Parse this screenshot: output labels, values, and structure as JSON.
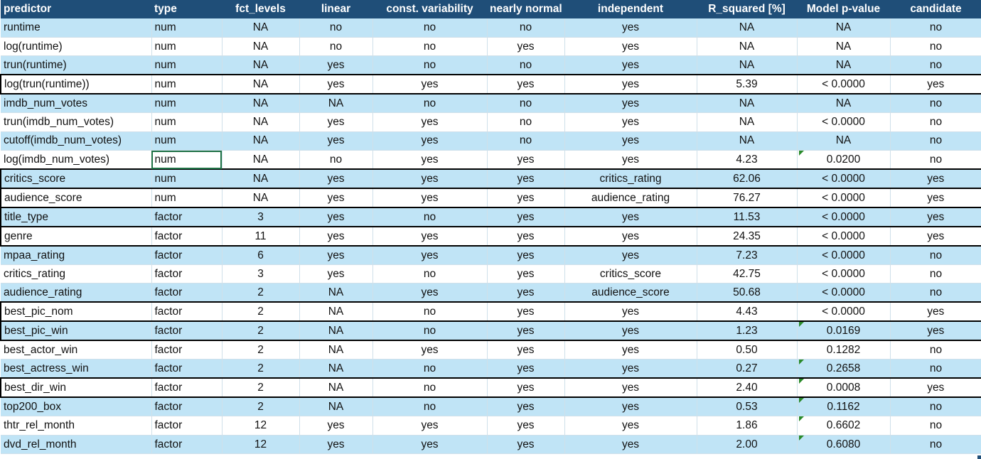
{
  "columns": [
    "predictor",
    "type",
    "fct_levels",
    "linear",
    "const. variability",
    "nearly normal",
    "independent",
    "R_squared [%]",
    "Model p-value",
    "candidate"
  ],
  "rows": [
    {
      "cells": [
        "runtime",
        "num",
        "NA",
        "no",
        "no",
        "no",
        "yes",
        "NA",
        "NA",
        "no"
      ]
    },
    {
      "cells": [
        "log(runtime)",
        "num",
        "NA",
        "no",
        "no",
        "yes",
        "yes",
        "NA",
        "NA",
        "no"
      ]
    },
    {
      "cells": [
        "trun(runtime)",
        "num",
        "NA",
        "yes",
        "no",
        "no",
        "yes",
        "NA",
        "NA",
        "no"
      ]
    },
    {
      "cells": [
        "log(trun(runtime))",
        "num",
        "NA",
        "yes",
        "yes",
        "yes",
        "yes",
        "5.39",
        "< 0.0000",
        "yes"
      ]
    },
    {
      "cells": [
        "imdb_num_votes",
        "num",
        "NA",
        "NA",
        "no",
        "no",
        "yes",
        "NA",
        "NA",
        "no"
      ]
    },
    {
      "cells": [
        "trun(imdb_num_votes)",
        "num",
        "NA",
        "yes",
        "yes",
        "no",
        "yes",
        "NA",
        "< 0.0000",
        "no"
      ]
    },
    {
      "cells": [
        "cutoff(imdb_num_votes)",
        "num",
        "NA",
        "yes",
        "yes",
        "no",
        "yes",
        "NA",
        "NA",
        "no"
      ]
    },
    {
      "cells": [
        "log(imdb_num_votes)",
        "num",
        "NA",
        "no",
        "yes",
        "yes",
        "yes",
        "4.23",
        "0.0200",
        "no"
      ]
    },
    {
      "cells": [
        "critics_score",
        "num",
        "NA",
        "yes",
        "yes",
        "yes",
        "critics_rating",
        "62.06",
        "< 0.0000",
        "yes"
      ]
    },
    {
      "cells": [
        "audience_score",
        "num",
        "NA",
        "yes",
        "yes",
        "yes",
        "audience_rating",
        "76.27",
        "< 0.0000",
        "yes"
      ]
    },
    {
      "cells": [
        "title_type",
        "factor",
        "3",
        "yes",
        "no",
        "yes",
        "yes",
        "11.53",
        "< 0.0000",
        "yes"
      ]
    },
    {
      "cells": [
        "genre",
        "factor",
        "11",
        "yes",
        "yes",
        "yes",
        "yes",
        "24.35",
        "< 0.0000",
        "yes"
      ]
    },
    {
      "cells": [
        "mpaa_rating",
        "factor",
        "6",
        "yes",
        "yes",
        "yes",
        "yes",
        "7.23",
        "< 0.0000",
        "no"
      ]
    },
    {
      "cells": [
        "critics_rating",
        "factor",
        "3",
        "yes",
        "no",
        "yes",
        "critics_score",
        "42.75",
        "< 0.0000",
        "no"
      ]
    },
    {
      "cells": [
        "audience_rating",
        "factor",
        "2",
        "NA",
        "yes",
        "yes",
        "audience_score",
        "50.68",
        "< 0.0000",
        "no"
      ]
    },
    {
      "cells": [
        "best_pic_nom",
        "factor",
        "2",
        "NA",
        "no",
        "yes",
        "yes",
        "4.43",
        "< 0.0000",
        "yes"
      ]
    },
    {
      "cells": [
        "best_pic_win",
        "factor",
        "2",
        "NA",
        "no",
        "yes",
        "yes",
        "1.23",
        "0.0169",
        "yes"
      ]
    },
    {
      "cells": [
        "best_actor_win",
        "factor",
        "2",
        "NA",
        "yes",
        "yes",
        "yes",
        "0.50",
        "0.1282",
        "no"
      ]
    },
    {
      "cells": [
        "best_actress_win",
        "factor",
        "2",
        "NA",
        "no",
        "yes",
        "yes",
        "0.27",
        "0.2658",
        "no"
      ]
    },
    {
      "cells": [
        "best_dir_win",
        "factor",
        "2",
        "NA",
        "no",
        "yes",
        "yes",
        "2.40",
        "0.0008",
        "yes"
      ]
    },
    {
      "cells": [
        "top200_box",
        "factor",
        "2",
        "NA",
        "no",
        "yes",
        "yes",
        "0.53",
        "0.1162",
        "no"
      ]
    },
    {
      "cells": [
        "thtr_rel_month",
        "factor",
        "12",
        "yes",
        "yes",
        "yes",
        "yes",
        "1.86",
        "0.6602",
        "no"
      ]
    },
    {
      "cells": [
        "dvd_rel_month",
        "factor",
        "12",
        "yes",
        "yes",
        "yes",
        "yes",
        "2.00",
        "0.6080",
        "no"
      ]
    }
  ],
  "colors": {
    "header_bg": "#1f4e78",
    "band_blue": "#c0e4f6",
    "selection": "#1e7145",
    "comment_marker": "#2a8a2a"
  }
}
